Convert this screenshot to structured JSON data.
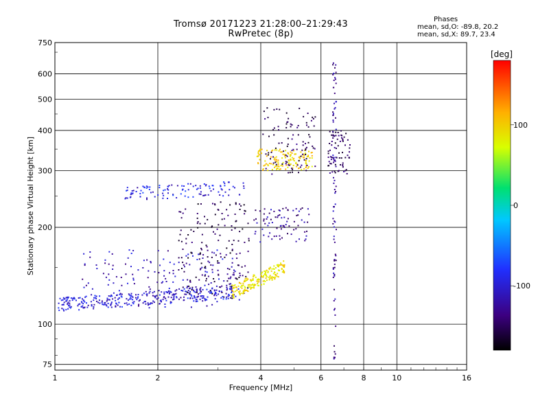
{
  "header": {
    "title_line1": "Tromsø 20171223 21:28:00–21:29:43",
    "title_line2": "RwPretec (8p)"
  },
  "stats": {
    "heading": "Phases",
    "line_o": "mean, sd,O: -89.8, 20.2",
    "line_x": "mean, sd,X:  89.7, 23.4"
  },
  "chart_data": {
    "type": "scatter",
    "xlabel": "Frequency [MHz]",
    "ylabel": "Stationary phase Virtual Height [km]",
    "xscale": "log",
    "yscale": "log",
    "xlim": [
      1,
      16
    ],
    "ylim": [
      72,
      750
    ],
    "xticks": [
      1,
      2,
      4,
      6,
      8,
      10,
      16
    ],
    "yticks": [
      75,
      100,
      200,
      300,
      400,
      500,
      600,
      750
    ],
    "grid": true,
    "colorbar": {
      "label": "[deg]",
      "range": [
        -180,
        180
      ],
      "ticks": [
        100,
        0,
        -100
      ],
      "colormap": [
        "#000000",
        "#3c0080",
        "#2030ff",
        "#00c8ff",
        "#00e070",
        "#d8ff00",
        "#ffb000",
        "#ff0000"
      ]
    },
    "series": [
      {
        "x_range": [
          1.02,
          3.3
        ],
        "y_trend": [
          115,
          126
        ],
        "phase": -95,
        "count": 320
      },
      {
        "x_range": [
          1.2,
          3.5
        ],
        "y_scatter": [
          112,
          170
        ],
        "phase": -105,
        "count": 170
      },
      {
        "x_range": [
          2.3,
          3.7
        ],
        "y_scatter": [
          120,
          240
        ],
        "phase": -150,
        "count": 170
      },
      {
        "x_range": [
          3.3,
          4.7
        ],
        "y_trend": [
          126,
          150
        ],
        "phase": 100,
        "count": 190
      },
      {
        "x_range": [
          3.8,
          5.6
        ],
        "y_scatter": [
          180,
          230
        ],
        "phase": -120,
        "count": 80
      },
      {
        "x_range": [
          1.6,
          3.6
        ],
        "y_trend": [
          255,
          265
        ],
        "phase": -90,
        "count": 110
      },
      {
        "x_range": [
          3.9,
          5.7
        ],
        "y_scatter": [
          300,
          350
        ],
        "phase": 110,
        "count": 140
      },
      {
        "x_range": [
          4.0,
          5.8
        ],
        "y_scatter": [
          290,
          470
        ],
        "phase": -145,
        "count": 100
      },
      {
        "x_range": [
          6.3,
          7.3
        ],
        "y_scatter": [
          290,
          400
        ],
        "phase": -140,
        "count": 70
      },
      {
        "x_range": [
          6.5,
          6.65
        ],
        "y_scatter": [
          78,
          650
        ],
        "phase": -120,
        "count": 90
      }
    ]
  }
}
